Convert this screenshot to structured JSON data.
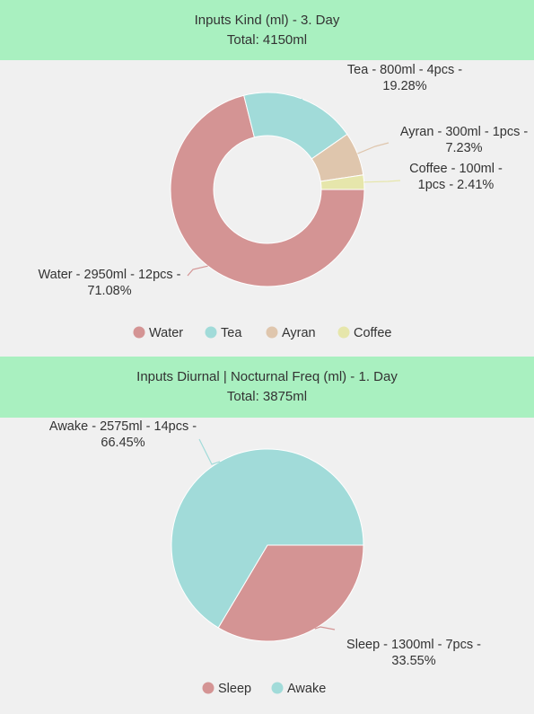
{
  "charts": [
    {
      "header": {
        "title": "Inputs Kind (ml) - 3. Day",
        "total": "Total: 4150ml"
      }
    },
    {
      "header": {
        "title": "Inputs Diurnal | Nocturnal Freq (ml) - 1. Day",
        "total": "Total: 3875ml"
      }
    }
  ],
  "chart_data": [
    {
      "type": "pie",
      "variant": "donut",
      "title": "Inputs Kind (ml) - 3. Day",
      "subtitle": "Total: 4150ml",
      "legend_position": "bottom",
      "slices": [
        {
          "name": "Water",
          "value": 2950,
          "pcs": 12,
          "percent": 71.08,
          "color": "#d49494",
          "label_lines": [
            "Water - 2950ml - 12pcs -",
            "71.08%"
          ]
        },
        {
          "name": "Tea",
          "value": 800,
          "pcs": 4,
          "percent": 19.28,
          "color": "#a1dbd9",
          "label_lines": [
            "Tea - 800ml - 4pcs -",
            "19.28%"
          ]
        },
        {
          "name": "Ayran",
          "value": 300,
          "pcs": 1,
          "percent": 7.23,
          "color": "#dfc6ad",
          "label_lines": [
            "Ayran - 300ml - 1pcs -",
            "7.23%"
          ]
        },
        {
          "name": "Coffee",
          "value": 100,
          "pcs": 1,
          "percent": 2.41,
          "color": "#e6e6ab",
          "label_lines": [
            "Coffee - 100ml -",
            "1pcs - 2.41%"
          ]
        }
      ]
    },
    {
      "type": "pie",
      "title": "Inputs Diurnal | Nocturnal Freq (ml) - 1. Day",
      "subtitle": "Total: 3875ml",
      "legend_position": "bottom",
      "slices": [
        {
          "name": "Sleep",
          "value": 1300,
          "pcs": 7,
          "percent": 33.55,
          "color": "#d49494",
          "label_lines": [
            "Sleep - 1300ml - 7pcs -",
            "33.55%"
          ]
        },
        {
          "name": "Awake",
          "value": 2575,
          "pcs": 14,
          "percent": 66.45,
          "color": "#a1dbd9",
          "label_lines": [
            "Awake - 2575ml - 14pcs -",
            "66.45%"
          ]
        }
      ]
    }
  ]
}
